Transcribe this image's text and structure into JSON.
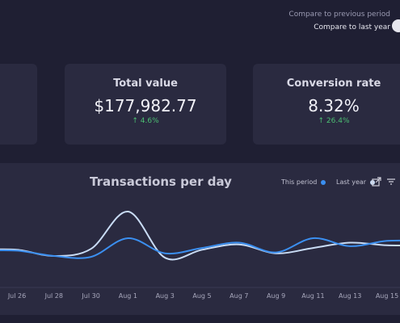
{
  "header": {
    "compare_previous": "Compare to previous period",
    "compare_last_year": "Compare to last year"
  },
  "cards": [
    {
      "title": "Total value",
      "value": "$177,982.77",
      "delta": "↑ 4.6%"
    },
    {
      "title": "Conversion rate",
      "value": "8.32%",
      "delta": "↑ 26.4%"
    }
  ],
  "chart": {
    "title": "Transactions per day",
    "legend_this": "This period",
    "legend_last": "Last year",
    "this_color": "#3b8ff0",
    "last_color": "#c9dcf5"
  },
  "chart_data": {
    "type": "line",
    "categories": [
      "Jul 26",
      "Jul 28",
      "Jul 30",
      "Aug 1",
      "Aug 3",
      "Aug 5",
      "Aug 7",
      "Aug 9",
      "Aug 11",
      "Aug 13",
      "Aug 15"
    ],
    "series": [
      {
        "name": "This period",
        "values": [
          36,
          30,
          29,
          50,
          33,
          39,
          45,
          34,
          50,
          41,
          47
        ]
      },
      {
        "name": "Last year",
        "values": [
          37,
          30,
          38,
          80,
          28,
          37,
          43,
          33,
          39,
          45,
          42
        ]
      }
    ]
  }
}
